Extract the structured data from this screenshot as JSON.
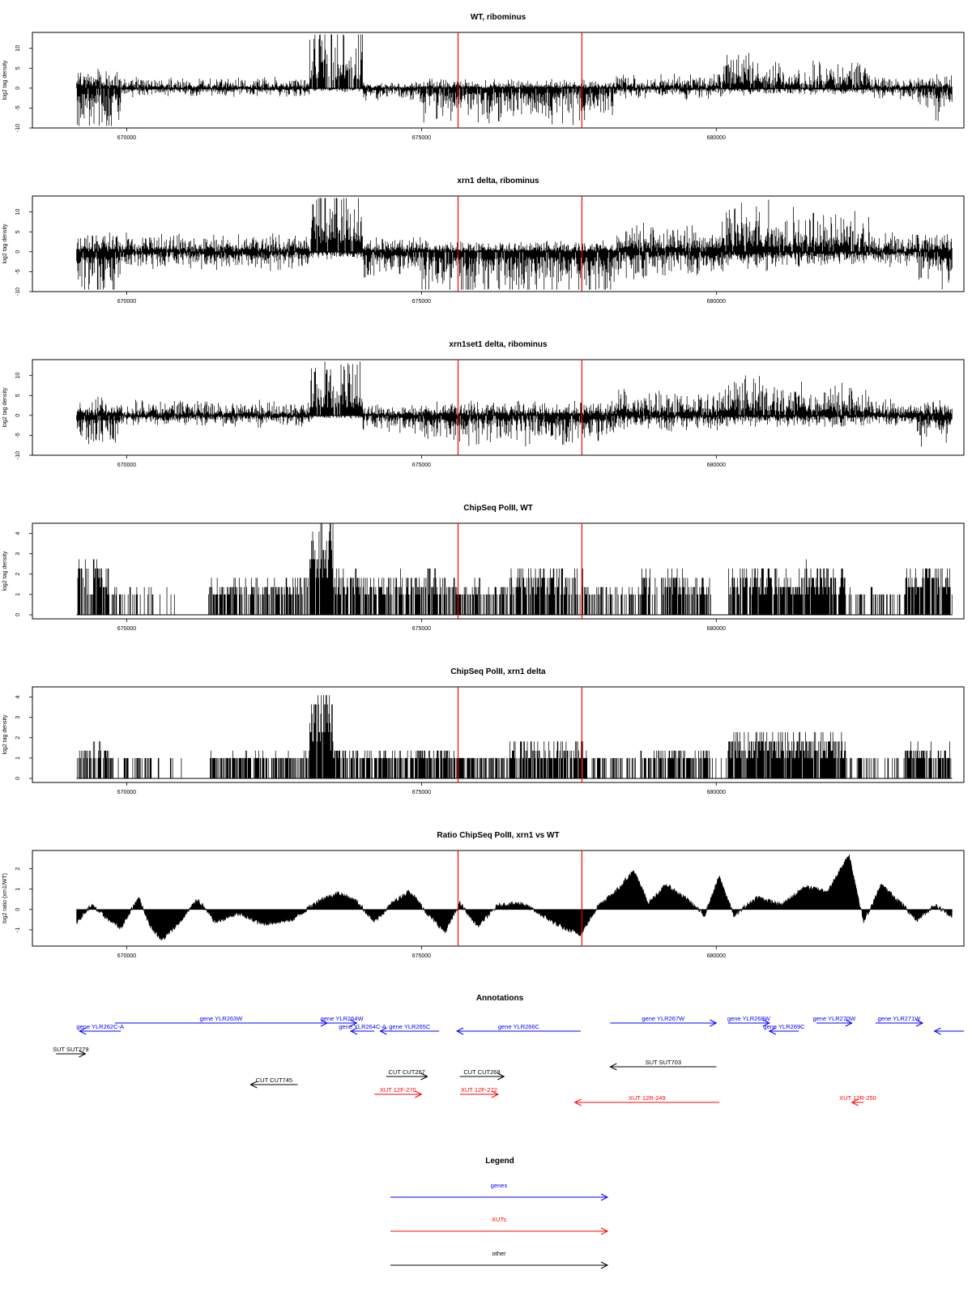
{
  "page": {
    "annotations_title": "Annotations",
    "legend_title": "Legend"
  },
  "chart_data": [
    {
      "id": "wt",
      "type": "bar",
      "title": "WT, ribominus",
      "ylabel": "log2 tag density",
      "ylim": [
        -10,
        14
      ],
      "xlim": [
        668400,
        684200
      ],
      "yticks": [
        "-10",
        "-5",
        "0",
        "5",
        "10"
      ],
      "xticks": [
        "670000",
        "675000",
        "680000"
      ],
      "grid": false,
      "vlines_x": [
        675620,
        677720
      ],
      "signal_range": [
        669150,
        684000
      ],
      "segments": [
        {
          "x0": 669150,
          "x1": 669900,
          "plus": 2.5,
          "minus": -7
        },
        {
          "x0": 669900,
          "x1": 673100,
          "plus": 1.5,
          "minus": -1.2
        },
        {
          "x0": 673100,
          "x1": 674000,
          "plus": 9,
          "minus": -0.5
        },
        {
          "x0": 674000,
          "x1": 675000,
          "plus": 0.8,
          "minus": -2
        },
        {
          "x0": 675000,
          "x1": 678300,
          "plus": 1.2,
          "minus": -5
        },
        {
          "x0": 678300,
          "x1": 680100,
          "plus": 2,
          "minus": -1.5
        },
        {
          "x0": 680100,
          "x1": 680900,
          "plus": 5,
          "minus": -1
        },
        {
          "x0": 680900,
          "x1": 682600,
          "plus": 3.5,
          "minus": -1
        },
        {
          "x0": 682600,
          "x1": 683400,
          "plus": 1.5,
          "minus": -1.5
        },
        {
          "x0": 683400,
          "x1": 684000,
          "plus": 1.8,
          "minus": -4
        }
      ]
    },
    {
      "id": "xrn1",
      "type": "bar",
      "title": "xrn1 delta, ribominus",
      "ylabel": "log2 tag density",
      "ylim": [
        -10,
        14
      ],
      "xlim": [
        668400,
        684200
      ],
      "yticks": [
        "-10",
        "-5",
        "0",
        "5",
        "10"
      ],
      "xticks": [
        "670000",
        "675000",
        "680000"
      ],
      "grid": false,
      "vlines_x": [
        675620,
        677720
      ],
      "signal_range": [
        669150,
        684000
      ],
      "segments": [
        {
          "x0": 669150,
          "x1": 669900,
          "plus": 3,
          "minus": -6.5
        },
        {
          "x0": 669900,
          "x1": 673100,
          "plus": 2.5,
          "minus": -2.5
        },
        {
          "x0": 673100,
          "x1": 674000,
          "plus": 11,
          "minus": -1
        },
        {
          "x0": 674000,
          "x1": 675000,
          "plus": 2,
          "minus": -3.5
        },
        {
          "x0": 675000,
          "x1": 678300,
          "plus": 1.5,
          "minus": -6.5
        },
        {
          "x0": 678300,
          "x1": 680100,
          "plus": 4,
          "minus": -3.5
        },
        {
          "x0": 680100,
          "x1": 680900,
          "plus": 6.5,
          "minus": -2.5
        },
        {
          "x0": 680900,
          "x1": 682600,
          "plus": 5.5,
          "minus": -2
        },
        {
          "x0": 682600,
          "x1": 683400,
          "plus": 2.5,
          "minus": -2
        },
        {
          "x0": 683400,
          "x1": 684000,
          "plus": 2.5,
          "minus": -5
        }
      ]
    },
    {
      "id": "xrn1set1",
      "type": "bar",
      "title": "xrn1set1 delta, ribominus",
      "ylabel": "log2 tag density",
      "ylim": [
        -10,
        14
      ],
      "xlim": [
        668400,
        684200
      ],
      "yticks": [
        "-10",
        "-5",
        "0",
        "5",
        "10"
      ],
      "xticks": [
        "670000",
        "675000",
        "680000"
      ],
      "grid": false,
      "vlines_x": [
        675620,
        677720
      ],
      "signal_range": [
        669150,
        684000
      ],
      "segments": [
        {
          "x0": 669150,
          "x1": 669900,
          "plus": 2.5,
          "minus": -5
        },
        {
          "x0": 669900,
          "x1": 673100,
          "plus": 2,
          "minus": -1.5
        },
        {
          "x0": 673100,
          "x1": 674000,
          "plus": 9,
          "minus": -0.5
        },
        {
          "x0": 674000,
          "x1": 675000,
          "plus": 1.5,
          "minus": -2.5
        },
        {
          "x0": 675000,
          "x1": 678300,
          "plus": 2,
          "minus": -4
        },
        {
          "x0": 678300,
          "x1": 680100,
          "plus": 3.5,
          "minus": -2
        },
        {
          "x0": 680100,
          "x1": 680900,
          "plus": 5.5,
          "minus": -1.5
        },
        {
          "x0": 680900,
          "x1": 682600,
          "plus": 4.5,
          "minus": -1.5
        },
        {
          "x0": 682600,
          "x1": 683400,
          "plus": 2.5,
          "minus": -1.5
        },
        {
          "x0": 683400,
          "x1": 684000,
          "plus": 2,
          "minus": -4
        }
      ]
    },
    {
      "id": "chip_wt",
      "type": "bar",
      "title": "ChipSeq PolII, WT",
      "ylabel": "log2 tag density",
      "ylim": [
        -0.2,
        4.5
      ],
      "xlim": [
        668400,
        684200
      ],
      "yticks": [
        "0",
        "1",
        "2",
        "3",
        "4"
      ],
      "xticks": [
        "670000",
        "675000",
        "680000"
      ],
      "grid": false,
      "vlines_x": [
        675620,
        677720
      ],
      "signal_range": [
        669150,
        684000
      ],
      "segments": [
        {
          "x0": 669150,
          "x1": 669700,
          "plus": 2,
          "density": 0.7
        },
        {
          "x0": 669700,
          "x1": 670500,
          "plus": 1,
          "density": 0.35
        },
        {
          "x0": 670500,
          "x1": 671400,
          "plus": 1,
          "density": 0.08
        },
        {
          "x0": 671400,
          "x1": 673100,
          "plus": 1.3,
          "density": 0.7
        },
        {
          "x0": 673100,
          "x1": 673500,
          "plus": 3.6,
          "density": 0.95
        },
        {
          "x0": 673500,
          "x1": 675600,
          "plus": 1.5,
          "density": 0.7
        },
        {
          "x0": 675600,
          "x1": 676500,
          "plus": 1.2,
          "density": 0.55
        },
        {
          "x0": 676500,
          "x1": 677800,
          "plus": 1.8,
          "density": 0.75
        },
        {
          "x0": 677800,
          "x1": 678700,
          "plus": 1,
          "density": 0.3
        },
        {
          "x0": 678700,
          "x1": 679900,
          "plus": 1.5,
          "density": 0.65
        },
        {
          "x0": 679900,
          "x1": 680200,
          "plus": 1,
          "density": 0.1
        },
        {
          "x0": 680200,
          "x1": 682200,
          "plus": 1.8,
          "density": 0.85
        },
        {
          "x0": 682200,
          "x1": 683200,
          "plus": 1,
          "density": 0.3
        },
        {
          "x0": 683200,
          "x1": 684000,
          "plus": 1.8,
          "density": 0.8
        }
      ]
    },
    {
      "id": "chip_xrn1",
      "type": "bar",
      "title": "ChipSeq PolII, xrn1 delta",
      "ylabel": "log2 tag density",
      "ylim": [
        -0.2,
        4.5
      ],
      "xlim": [
        668400,
        684200
      ],
      "yticks": [
        "0",
        "1",
        "2",
        "3",
        "4"
      ],
      "xticks": [
        "670000",
        "675000",
        "680000"
      ],
      "grid": false,
      "vlines_x": [
        675620,
        677720
      ],
      "signal_range": [
        669150,
        684000
      ],
      "segments": [
        {
          "x0": 669150,
          "x1": 669700,
          "plus": 1.2,
          "density": 0.6
        },
        {
          "x0": 669700,
          "x1": 670500,
          "plus": 0.5,
          "density": 0.3
        },
        {
          "x0": 670500,
          "x1": 671400,
          "plus": 0.4,
          "density": 0.08
        },
        {
          "x0": 671400,
          "x1": 673100,
          "plus": 0.9,
          "density": 0.7
        },
        {
          "x0": 673100,
          "x1": 673500,
          "plus": 3,
          "density": 0.95
        },
        {
          "x0": 673500,
          "x1": 675600,
          "plus": 1.1,
          "density": 0.75
        },
        {
          "x0": 675600,
          "x1": 676500,
          "plus": 0.8,
          "density": 0.6
        },
        {
          "x0": 676500,
          "x1": 677800,
          "plus": 1.3,
          "density": 0.8
        },
        {
          "x0": 677800,
          "x1": 678700,
          "plus": 0.5,
          "density": 0.3
        },
        {
          "x0": 678700,
          "x1": 679900,
          "plus": 1.1,
          "density": 0.65
        },
        {
          "x0": 679900,
          "x1": 680200,
          "plus": 0.4,
          "density": 0.1
        },
        {
          "x0": 680200,
          "x1": 682200,
          "plus": 1.6,
          "density": 0.85
        },
        {
          "x0": 682200,
          "x1": 683200,
          "plus": 0.5,
          "density": 0.3
        },
        {
          "x0": 683200,
          "x1": 684000,
          "plus": 1.2,
          "density": 0.8
        }
      ]
    },
    {
      "id": "ratio",
      "type": "area",
      "title": "Ratio ChipSeq PolII, xrn1 vs WT",
      "ylabel": "log2 ratio (xrn1/WT)",
      "ylim": [
        -1.8,
        2.9
      ],
      "xlim": [
        668400,
        684200
      ],
      "yticks": [
        "-1",
        "0",
        "1",
        "2"
      ],
      "xticks": [
        "670000",
        "675000",
        "680000"
      ],
      "grid": false,
      "vlines_x": [
        675620,
        677720
      ],
      "signal_range": [
        669150,
        684000
      ],
      "profile": [
        {
          "x": 669150,
          "y": -0.6
        },
        {
          "x": 669400,
          "y": 0.2
        },
        {
          "x": 669700,
          "y": -0.5
        },
        {
          "x": 669900,
          "y": -0.9
        },
        {
          "x": 670200,
          "y": 0.6
        },
        {
          "x": 670400,
          "y": -0.8
        },
        {
          "x": 670600,
          "y": -1.5
        },
        {
          "x": 670900,
          "y": -0.6
        },
        {
          "x": 671200,
          "y": 0.5
        },
        {
          "x": 671500,
          "y": -0.6
        },
        {
          "x": 671900,
          "y": -0.2
        },
        {
          "x": 672300,
          "y": -0.7
        },
        {
          "x": 672800,
          "y": -0.5
        },
        {
          "x": 673300,
          "y": 0.5
        },
        {
          "x": 673600,
          "y": 0.8
        },
        {
          "x": 673900,
          "y": 0.4
        },
        {
          "x": 674200,
          "y": -0.6
        },
        {
          "x": 674500,
          "y": 0.3
        },
        {
          "x": 674800,
          "y": 0.9
        },
        {
          "x": 675100,
          "y": -0.2
        },
        {
          "x": 675400,
          "y": -1.1
        },
        {
          "x": 675650,
          "y": 0.3
        },
        {
          "x": 675950,
          "y": -0.8
        },
        {
          "x": 676300,
          "y": 0.2
        },
        {
          "x": 676700,
          "y": 0.3
        },
        {
          "x": 677000,
          "y": -0.2
        },
        {
          "x": 677400,
          "y": -0.9
        },
        {
          "x": 677700,
          "y": -1.2
        },
        {
          "x": 678000,
          "y": 0.2
        },
        {
          "x": 678300,
          "y": 0.9
        },
        {
          "x": 678600,
          "y": 1.9
        },
        {
          "x": 678850,
          "y": 0.3
        },
        {
          "x": 679150,
          "y": 1.2
        },
        {
          "x": 679500,
          "y": 0.5
        },
        {
          "x": 679800,
          "y": -0.3
        },
        {
          "x": 680050,
          "y": 1.6
        },
        {
          "x": 680300,
          "y": -0.3
        },
        {
          "x": 680700,
          "y": 0.6
        },
        {
          "x": 681100,
          "y": 0.2
        },
        {
          "x": 681500,
          "y": 1.1
        },
        {
          "x": 681900,
          "y": 0.9
        },
        {
          "x": 682250,
          "y": 2.7
        },
        {
          "x": 682500,
          "y": -0.6
        },
        {
          "x": 682800,
          "y": 1.2
        },
        {
          "x": 683100,
          "y": 0.4
        },
        {
          "x": 683400,
          "y": -0.5
        },
        {
          "x": 683700,
          "y": 0.2
        },
        {
          "x": 684000,
          "y": -0.3
        }
      ]
    }
  ],
  "annotations": {
    "xlim": [
      668400,
      684200
    ],
    "items": [
      {
        "label": "gene YLR262C-A",
        "x0": 669900,
        "x1": 669200,
        "row": 0,
        "kind": "gene"
      },
      {
        "label": "gene YLR263W",
        "x0": 669800,
        "x1": 673400,
        "row": -1,
        "kind": "gene"
      },
      {
        "label": "gene YLR264W",
        "x0": 673400,
        "x1": 673900,
        "row": -1,
        "kind": "gene"
      },
      {
        "label": "gene YLR264C-A",
        "x0": 674200,
        "x1": 673800,
        "row": 0,
        "kind": "gene"
      },
      {
        "label": "gene YLR265C",
        "x0": 675300,
        "x1": 674300,
        "row": 0,
        "kind": "gene"
      },
      {
        "label": "gene YLR266C",
        "x0": 677700,
        "x1": 675600,
        "row": 0,
        "kind": "gene"
      },
      {
        "label": "gene YLR267W",
        "x0": 678200,
        "x1": 680000,
        "row": -1,
        "kind": "gene"
      },
      {
        "label": "gene YLR268W",
        "x0": 680200,
        "x1": 680900,
        "row": -1,
        "kind": "gene"
      },
      {
        "label": "gene YLR269C",
        "x0": 681400,
        "x1": 680900,
        "row": 0,
        "kind": "gene"
      },
      {
        "label": "gene YLR270W",
        "x0": 681700,
        "x1": 682300,
        "row": -1,
        "kind": "gene"
      },
      {
        "label": "gene YLR271W",
        "x0": 682700,
        "x1": 683500,
        "row": -1,
        "kind": "gene"
      },
      {
        "label": "",
        "x0": 684200,
        "x1": 683700,
        "row": 0,
        "kind": "gene"
      },
      {
        "label": "SUT SUT279",
        "x0": 668800,
        "x1": 669300,
        "row": 1,
        "kind": "other"
      },
      {
        "label": "SUT SUT703",
        "x0": 680000,
        "x1": 678200,
        "row": 2,
        "kind": "other"
      },
      {
        "label": "CUT CUT267",
        "x0": 674400,
        "x1": 675100,
        "row": 3,
        "kind": "other"
      },
      {
        "label": "CUT CUT268",
        "x0": 675650,
        "x1": 676400,
        "row": 3,
        "kind": "other"
      },
      {
        "label": "CUT CUT745",
        "x0": 672900,
        "x1": 672100,
        "row": 4,
        "kind": "other"
      },
      {
        "label": "XUT 12F-270",
        "x0": 674200,
        "x1": 675000,
        "row": 5,
        "kind": "xut"
      },
      {
        "label": "XUT 12F-272",
        "x0": 675650,
        "x1": 676300,
        "row": 5,
        "kind": "xut"
      },
      {
        "label": "XUT 12R-249",
        "x0": 680050,
        "x1": 677600,
        "row": 6,
        "kind": "xut"
      },
      {
        "label": "XUT 12R-250",
        "x0": 682500,
        "x1": 682300,
        "row": 6,
        "kind": "xut"
      }
    ]
  },
  "legend": {
    "items": [
      {
        "label": "genes",
        "color": "#0000ff"
      },
      {
        "label": "XUTs",
        "color": "#ff0000"
      },
      {
        "label": "other",
        "color": "#000000"
      }
    ]
  }
}
